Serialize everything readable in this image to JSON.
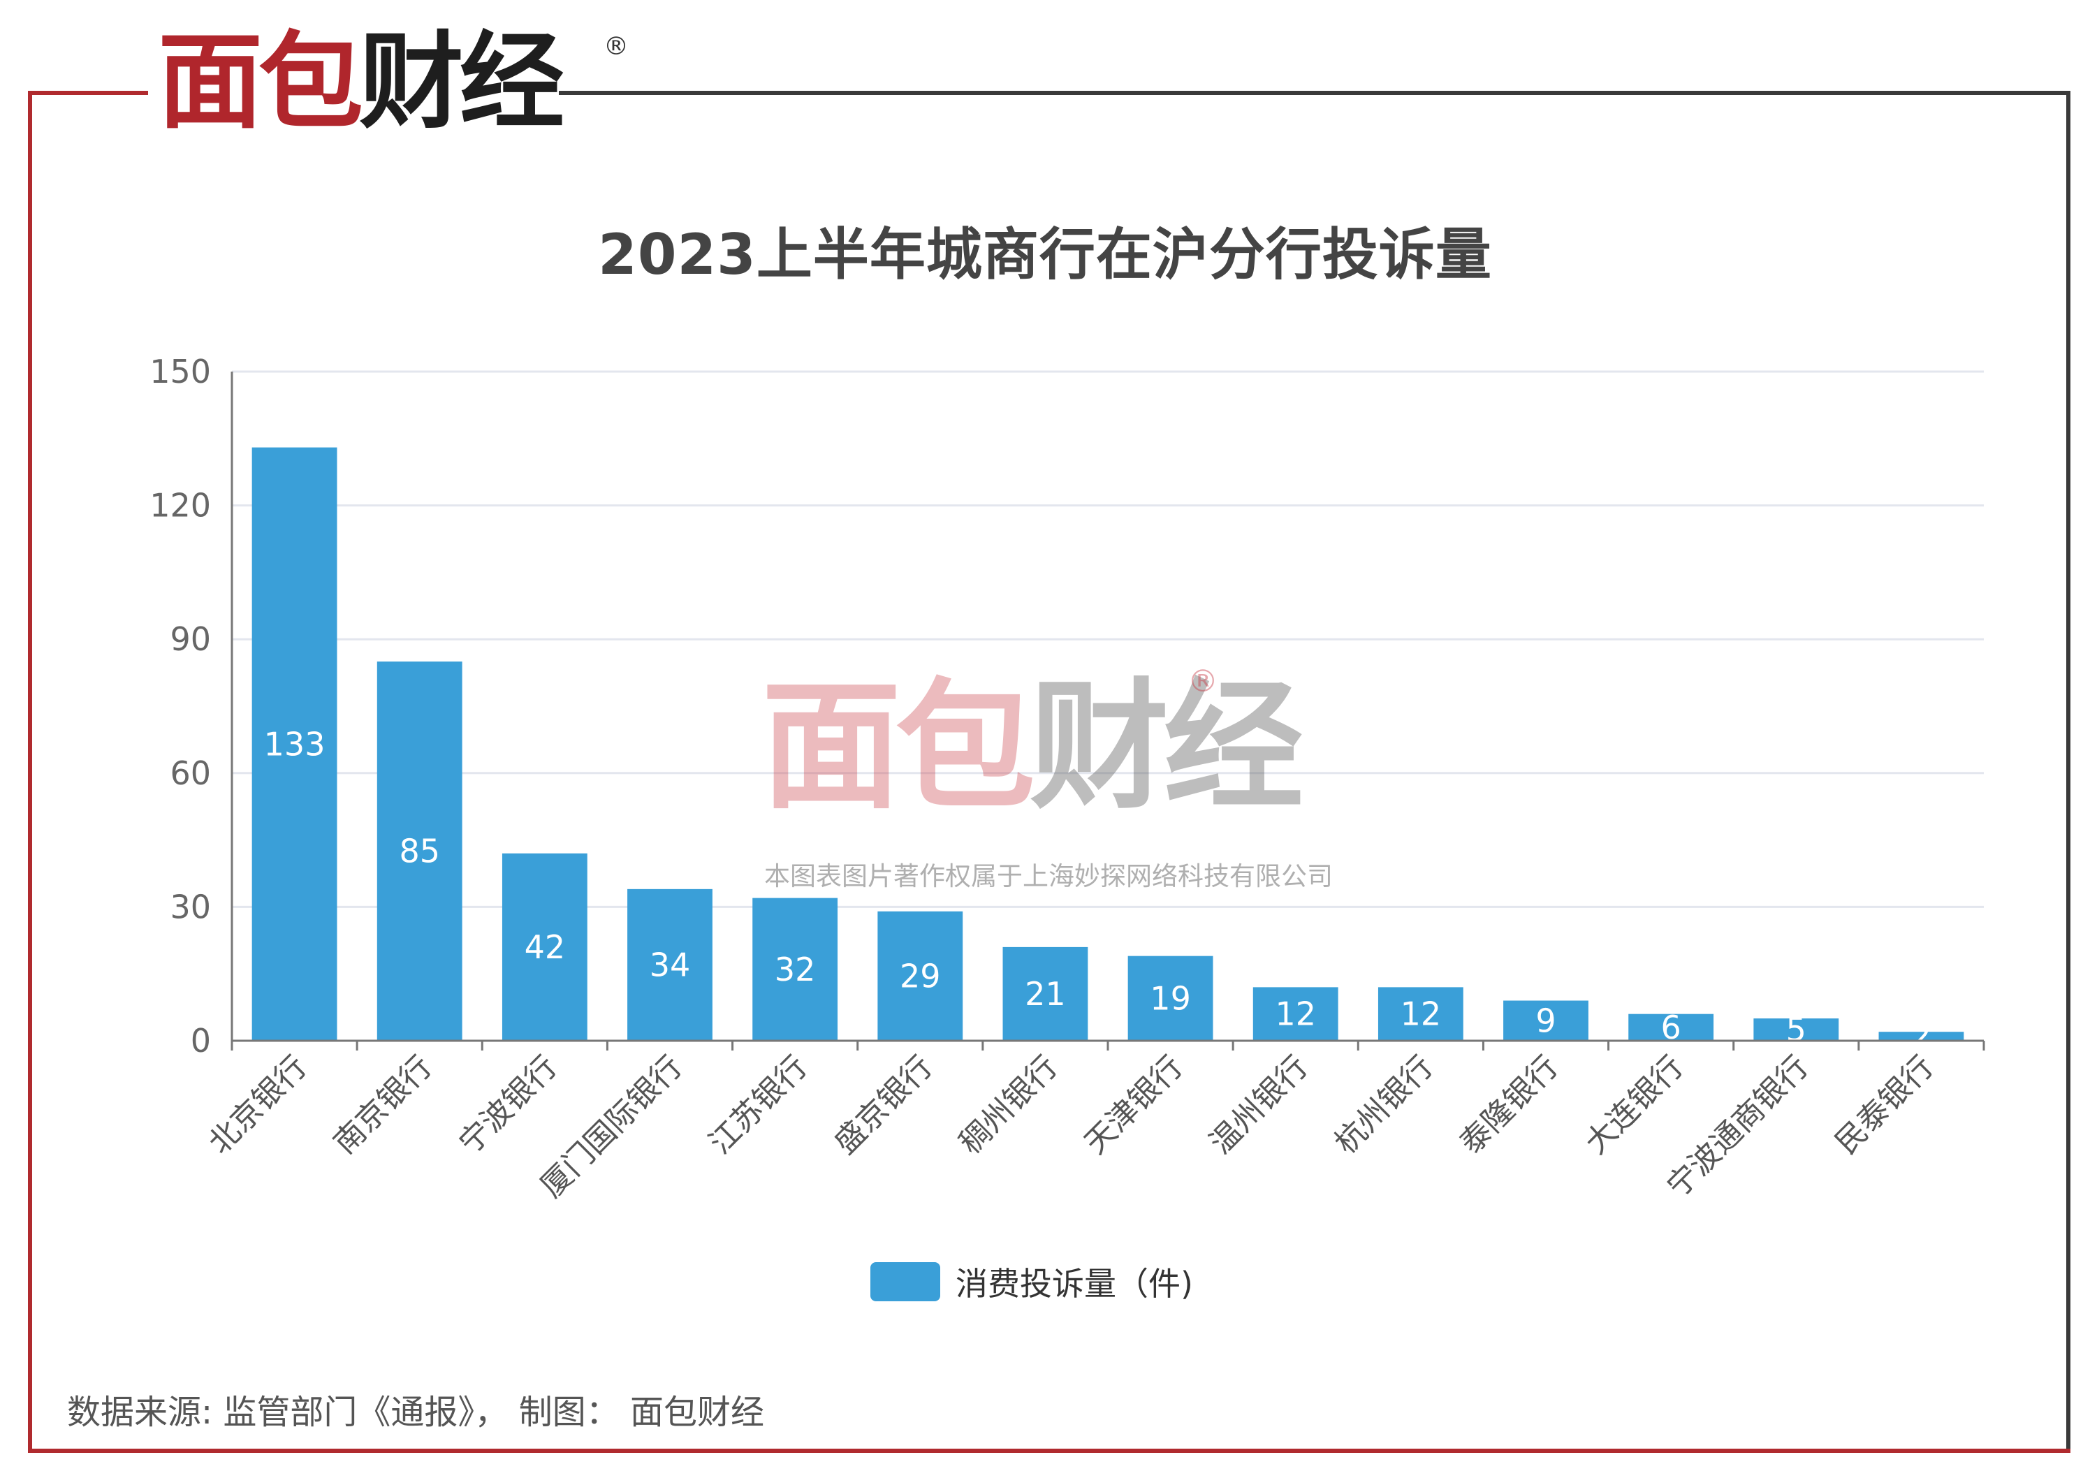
{
  "brand": {
    "logo_red": "面包",
    "logo_dark": "财经",
    "registered_mark": "®"
  },
  "watermark": {
    "red": "面包",
    "gray": "财经",
    "registered_mark": "®",
    "copyright": "本图表图片著作权属于上海妙探网络科技有限公司"
  },
  "source_text": "数据来源: 监管部门《通报》， 制图： 面包财经",
  "colors": {
    "bar": "#3a9fd8",
    "brand_red": "#b0262c",
    "frame_dark": "#3a3a3a"
  },
  "chart_data": {
    "type": "bar",
    "title": "2023上半年城商行在沪分行投诉量",
    "xlabel": "",
    "ylabel": "",
    "ylim": [
      0,
      150
    ],
    "yticks": [
      0,
      30,
      60,
      90,
      120,
      150
    ],
    "grid": true,
    "legend_position": "bottom",
    "categories": [
      "北京银行",
      "南京银行",
      "宁波银行",
      "厦门国际银行",
      "江苏银行",
      "盛京银行",
      "稠州银行",
      "天津银行",
      "温州银行",
      "杭州银行",
      "泰隆银行",
      "大连银行",
      "宁波通商银行",
      "民泰银行"
    ],
    "series": [
      {
        "name": "消费投诉量（件)",
        "values": [
          133,
          85,
          42,
          34,
          32,
          29,
          21,
          19,
          12,
          12,
          9,
          6,
          5,
          2
        ]
      }
    ]
  }
}
